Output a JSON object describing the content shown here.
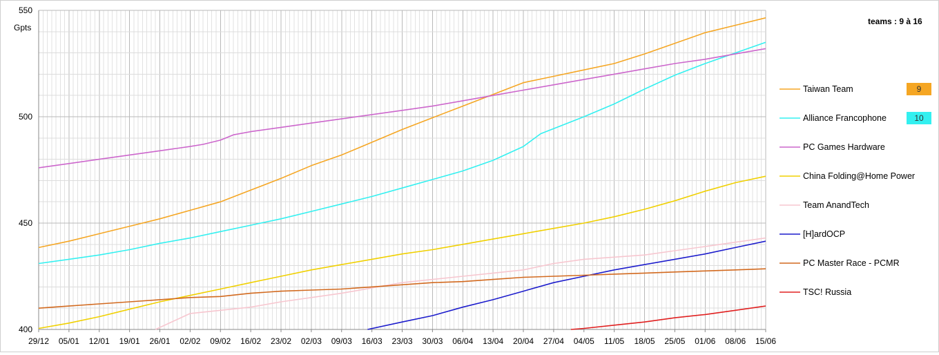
{
  "chart_data": {
    "type": "line",
    "ylabel": "Gpts",
    "header": "teams : 9 à 16",
    "ylim": [
      400,
      550
    ],
    "yticks": [
      400,
      450,
      500,
      550
    ],
    "x_tick_labels": [
      "29/12",
      "05/01",
      "12/01",
      "19/01",
      "26/01",
      "02/02",
      "09/02",
      "16/02",
      "23/02",
      "02/03",
      "09/03",
      "16/03",
      "23/03",
      "30/03",
      "06/04",
      "13/04",
      "20/04",
      "27/04",
      "04/05",
      "11/05",
      "18/05",
      "25/05",
      "01/06",
      "08/06",
      "15/06"
    ],
    "x_range_days": [
      0,
      168
    ],
    "grid": true,
    "legend_position": "right",
    "series": [
      {
        "name": "Taiwan Team",
        "color": "#f5a623",
        "rank": "9",
        "points": [
          [
            0,
            438.5
          ],
          [
            7,
            441.5
          ],
          [
            14,
            445
          ],
          [
            21,
            448.5
          ],
          [
            28,
            452
          ],
          [
            35,
            456
          ],
          [
            42,
            460
          ],
          [
            49,
            465.5
          ],
          [
            56,
            471
          ],
          [
            63,
            477
          ],
          [
            70,
            482
          ],
          [
            77,
            488
          ],
          [
            84,
            494
          ],
          [
            91,
            499.5
          ],
          [
            98,
            505
          ],
          [
            105,
            510.5
          ],
          [
            112,
            516
          ],
          [
            119,
            519
          ],
          [
            126,
            522
          ],
          [
            133,
            525
          ],
          [
            140,
            529.5
          ],
          [
            147,
            534.5
          ],
          [
            154,
            539.5
          ],
          [
            161,
            543
          ],
          [
            168,
            546.5
          ]
        ]
      },
      {
        "name": "Alliance Francophone",
        "color": "#33f0f0",
        "rank": "10",
        "points": [
          [
            0,
            431
          ],
          [
            7,
            433
          ],
          [
            14,
            435
          ],
          [
            21,
            437.5
          ],
          [
            28,
            440.5
          ],
          [
            35,
            443
          ],
          [
            42,
            446
          ],
          [
            49,
            449
          ],
          [
            56,
            452
          ],
          [
            63,
            455.5
          ],
          [
            70,
            459
          ],
          [
            77,
            462.5
          ],
          [
            84,
            466.5
          ],
          [
            91,
            470.5
          ],
          [
            98,
            474.5
          ],
          [
            105,
            479.5
          ],
          [
            112,
            486
          ],
          [
            116,
            492
          ],
          [
            126,
            500
          ],
          [
            133,
            506
          ],
          [
            140,
            513
          ],
          [
            147,
            519.5
          ],
          [
            154,
            525
          ],
          [
            161,
            530
          ],
          [
            168,
            535
          ]
        ]
      },
      {
        "name": "PC Games Hardware",
        "color": "#cc66cc",
        "rank": "",
        "points": [
          [
            0,
            476
          ],
          [
            7,
            478
          ],
          [
            14,
            480
          ],
          [
            21,
            482
          ],
          [
            28,
            484
          ],
          [
            35,
            486
          ],
          [
            38,
            487
          ],
          [
            42,
            489
          ],
          [
            45,
            491.5
          ],
          [
            49,
            493
          ],
          [
            56,
            495
          ],
          [
            63,
            497
          ],
          [
            70,
            499
          ],
          [
            77,
            501
          ],
          [
            84,
            503
          ],
          [
            91,
            505
          ],
          [
            98,
            507.5
          ],
          [
            105,
            510
          ],
          [
            112,
            512.5
          ],
          [
            119,
            515
          ],
          [
            126,
            517.5
          ],
          [
            133,
            520
          ],
          [
            140,
            522.5
          ],
          [
            147,
            525
          ],
          [
            154,
            527
          ],
          [
            161,
            529.5
          ],
          [
            168,
            532
          ]
        ]
      },
      {
        "name": "China Folding@Home Power",
        "color": "#f0d000",
        "rank": "",
        "points": [
          [
            0,
            400.5
          ],
          [
            7,
            403
          ],
          [
            14,
            406
          ],
          [
            21,
            409.5
          ],
          [
            28,
            413
          ],
          [
            35,
            416
          ],
          [
            42,
            419
          ],
          [
            49,
            422
          ],
          [
            56,
            425
          ],
          [
            63,
            428
          ],
          [
            70,
            430.5
          ],
          [
            77,
            433
          ],
          [
            84,
            435.5
          ],
          [
            91,
            437.5
          ],
          [
            98,
            440
          ],
          [
            105,
            442.5
          ],
          [
            112,
            445
          ],
          [
            119,
            447.5
          ],
          [
            126,
            450
          ],
          [
            133,
            453
          ],
          [
            140,
            456.5
          ],
          [
            147,
            460.5
          ],
          [
            154,
            465
          ],
          [
            161,
            469
          ],
          [
            168,
            472
          ]
        ]
      },
      {
        "name": "Team AnandTech",
        "color": "#f7c6cf",
        "rank": "",
        "points": [
          [
            27,
            400
          ],
          [
            35,
            407.5
          ],
          [
            42,
            409
          ],
          [
            49,
            410.5
          ],
          [
            56,
            413
          ],
          [
            63,
            415
          ],
          [
            70,
            417
          ],
          [
            77,
            419.5
          ],
          [
            84,
            422
          ],
          [
            91,
            423.5
          ],
          [
            98,
            425
          ],
          [
            105,
            426.5
          ],
          [
            112,
            428
          ],
          [
            119,
            431
          ],
          [
            126,
            433
          ],
          [
            133,
            434
          ],
          [
            140,
            435
          ],
          [
            147,
            437
          ],
          [
            154,
            439
          ],
          [
            161,
            441
          ],
          [
            168,
            443
          ]
        ]
      },
      {
        "name": "[H]ardOCP",
        "color": "#1c1ccc",
        "rank": "",
        "points": [
          [
            76,
            400
          ],
          [
            84,
            403.5
          ],
          [
            91,
            406.5
          ],
          [
            98,
            410.5
          ],
          [
            105,
            414
          ],
          [
            112,
            418
          ],
          [
            119,
            422
          ],
          [
            126,
            425
          ],
          [
            133,
            428
          ],
          [
            140,
            430.5
          ],
          [
            147,
            433
          ],
          [
            154,
            435.5
          ],
          [
            161,
            438.5
          ],
          [
            168,
            441.5
          ]
        ]
      },
      {
        "name": "PC Master Race - PCMR",
        "color": "#d2691e",
        "rank": "",
        "points": [
          [
            0,
            410
          ],
          [
            7,
            411
          ],
          [
            14,
            412
          ],
          [
            21,
            413
          ],
          [
            28,
            414
          ],
          [
            35,
            415
          ],
          [
            42,
            415.5
          ],
          [
            49,
            417
          ],
          [
            56,
            418
          ],
          [
            63,
            418.5
          ],
          [
            70,
            419
          ],
          [
            77,
            420
          ],
          [
            84,
            421
          ],
          [
            91,
            422
          ],
          [
            98,
            422.5
          ],
          [
            105,
            423.5
          ],
          [
            112,
            424.5
          ],
          [
            119,
            425
          ],
          [
            126,
            425.5
          ],
          [
            133,
            426
          ],
          [
            140,
            426.5
          ],
          [
            147,
            427
          ],
          [
            154,
            427.5
          ],
          [
            161,
            428
          ],
          [
            168,
            428.5
          ]
        ]
      },
      {
        "name": "TSC! Russia",
        "color": "#e02020",
        "rank": "",
        "points": [
          [
            123,
            400
          ],
          [
            126,
            400.5
          ],
          [
            133,
            402
          ],
          [
            140,
            403.5
          ],
          [
            147,
            405.5
          ],
          [
            154,
            407
          ],
          [
            161,
            409
          ],
          [
            168,
            411
          ]
        ]
      }
    ]
  }
}
